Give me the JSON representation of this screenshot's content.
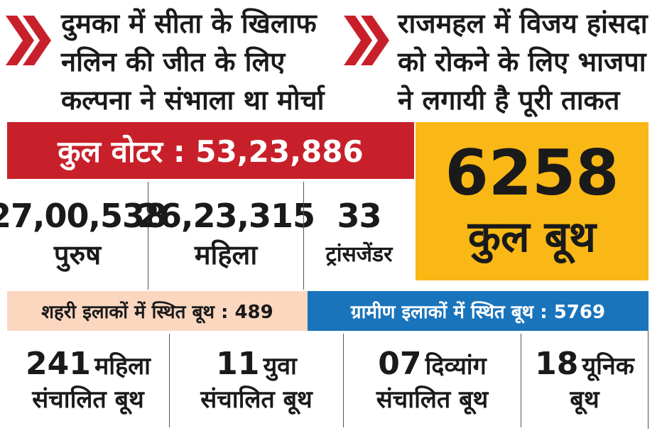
{
  "headline_left": {
    "lines": [
      "दुमका में सीता के खिलाफ",
      "नलिन की जीत के लिए",
      "कल्पना ने संभाला था मोर्चा"
    ]
  },
  "headline_right": {
    "lines": [
      "राजमहल में विजय हांसदा",
      "को रोकने के लिए भाजपा",
      "ने लगायी है पूरी ताकत"
    ]
  },
  "total_voters": "कुल वोटर : 53,23,886",
  "voter_breakdown": [
    {
      "number": "27,00,538",
      "label": "पुरुष"
    },
    {
      "number": "26,23,315",
      "label": "महिला"
    },
    {
      "number": "33",
      "label": "ट्रांसजेंडर"
    }
  ],
  "total_booths": {
    "number": "6258",
    "label": "कुल बूथ"
  },
  "urban_booths": "शहरी इलाकों में स्थित बूथ : 489",
  "rural_booths": "ग्रामीण इलाकों में स्थित बूथ : 5769",
  "special_booths": [
    {
      "number": "241",
      "label": "महिला",
      "sub": "संचालित बूथ"
    },
    {
      "number": "11",
      "label": "युवा",
      "sub": "संचालित बूथ"
    },
    {
      "number": "07",
      "label": "दिव्यांग",
      "sub": "संचालित बूथ"
    },
    {
      "number": "18",
      "label": "यूनिक",
      "sub": "बूथ"
    }
  ]
}
